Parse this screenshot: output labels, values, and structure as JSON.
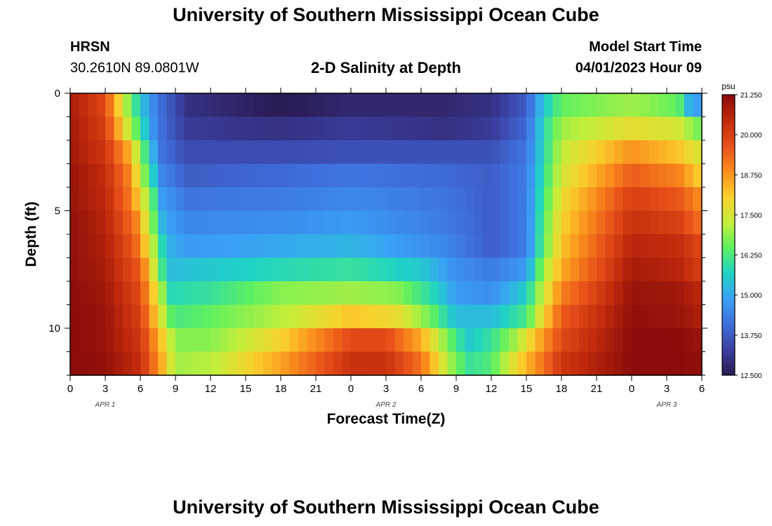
{
  "header": {
    "title": "University of Southern Mississippi Ocean Cube",
    "station": "HRSN",
    "coords": "30.2610N  89.0801W",
    "model_start_label": "Model Start Time",
    "model_start_value": "04/01/2023 Hour 09",
    "footer_title": "University of Southern Mississippi Ocean Cube"
  },
  "colorbar": {
    "unit": "psu",
    "ticks": [
      "21.250",
      "20.000",
      "18.750",
      "17.500",
      "16.250",
      "15.000",
      "13.750",
      "12.500"
    ],
    "stops": [
      "#2b1a52",
      "#3a3fa0",
      "#3f6fdc",
      "#3aa0f5",
      "#1fd4c4",
      "#5ff060",
      "#c2ef3a",
      "#fad02c",
      "#fa8c1c",
      "#e8501a",
      "#c22a0c",
      "#870a0a"
    ]
  },
  "chart_data": {
    "type": "heatmap",
    "title": "2-D Salinity at Depth",
    "xlabel": "Forecast Time(Z)",
    "ylabel": "Depth (ft)",
    "x_tick_labels": [
      "0",
      "3",
      "6",
      "9",
      "12",
      "15",
      "18",
      "21",
      "0",
      "3",
      "6",
      "9",
      "12",
      "15",
      "18",
      "21",
      "0",
      "3",
      "6"
    ],
    "x_day_labels": [
      {
        "hour": 3,
        "label": "APR 1"
      },
      {
        "hour": 27,
        "label": "APR 2"
      },
      {
        "hour": 51,
        "label": "APR 3"
      }
    ],
    "x_range_hours": [
      0,
      54
    ],
    "y_ticks": [
      "0",
      "5",
      "10"
    ],
    "y_range_ft": [
      0,
      12
    ],
    "value_range_psu": [
      12.5,
      21.25
    ],
    "depth_layers_ft": [
      0,
      1,
      2,
      3,
      4,
      5,
      6,
      7,
      8,
      9,
      10,
      11,
      12
    ],
    "layer_profiles": [
      {
        "depth": 0,
        "points": [
          [
            0,
            20.8
          ],
          [
            3,
            19.8
          ],
          [
            4.5,
            17.5
          ],
          [
            6,
            15.5
          ],
          [
            7.5,
            14.2
          ],
          [
            10,
            13.0
          ],
          [
            18,
            12.5
          ],
          [
            24,
            12.8
          ],
          [
            32,
            12.8
          ],
          [
            36,
            13.0
          ],
          [
            39,
            13.8
          ],
          [
            40.5,
            15.5
          ],
          [
            42,
            16.5
          ],
          [
            48,
            17.0
          ],
          [
            52,
            16.5
          ],
          [
            53,
            15.0
          ],
          [
            54,
            14.8
          ]
        ]
      },
      {
        "depth": 1,
        "points": [
          [
            0,
            20.9
          ],
          [
            3,
            20.0
          ],
          [
            4.5,
            18.0
          ],
          [
            6,
            16.0
          ],
          [
            7.5,
            14.2
          ],
          [
            10,
            13.2
          ],
          [
            18,
            13.0
          ],
          [
            24,
            13.2
          ],
          [
            32,
            13.0
          ],
          [
            36,
            13.2
          ],
          [
            39,
            14.0
          ],
          [
            40.5,
            15.8
          ],
          [
            42,
            17.0
          ],
          [
            48,
            17.8
          ],
          [
            52,
            17.5
          ],
          [
            54,
            16.5
          ]
        ]
      },
      {
        "depth": 2,
        "points": [
          [
            0,
            20.9
          ],
          [
            3,
            20.2
          ],
          [
            5,
            18.5
          ],
          [
            6.5,
            16.0
          ],
          [
            7.7,
            14.2
          ],
          [
            10,
            13.5
          ],
          [
            18,
            13.5
          ],
          [
            24,
            13.6
          ],
          [
            32,
            13.6
          ],
          [
            36,
            13.6
          ],
          [
            39,
            14.2
          ],
          [
            40.5,
            15.8
          ],
          [
            42,
            17.3
          ],
          [
            48,
            18.8
          ],
          [
            52,
            18.2
          ],
          [
            54,
            17.5
          ]
        ]
      },
      {
        "depth": 3,
        "points": [
          [
            0,
            21.0
          ],
          [
            3,
            20.4
          ],
          [
            5,
            19.0
          ],
          [
            6.5,
            16.5
          ],
          [
            7.8,
            14.5
          ],
          [
            10,
            13.8
          ],
          [
            18,
            14.0
          ],
          [
            24,
            14.2
          ],
          [
            32,
            14.0
          ],
          [
            36,
            13.8
          ],
          [
            39,
            14.3
          ],
          [
            40.5,
            16.0
          ],
          [
            42,
            17.5
          ],
          [
            48,
            19.5
          ],
          [
            52,
            19.0
          ],
          [
            54,
            18.0
          ]
        ]
      },
      {
        "depth": 4,
        "points": [
          [
            0,
            21.0
          ],
          [
            3,
            20.5
          ],
          [
            5,
            19.2
          ],
          [
            6.8,
            16.8
          ],
          [
            7.9,
            14.8
          ],
          [
            10,
            14.2
          ],
          [
            18,
            14.3
          ],
          [
            24,
            14.5
          ],
          [
            32,
            14.2
          ],
          [
            36,
            13.8
          ],
          [
            39,
            14.3
          ],
          [
            40.5,
            16.2
          ],
          [
            42,
            17.8
          ],
          [
            48,
            20.0
          ],
          [
            52,
            19.6
          ],
          [
            54,
            18.8
          ]
        ]
      },
      {
        "depth": 5,
        "points": [
          [
            0,
            21.1
          ],
          [
            3,
            20.6
          ],
          [
            5.5,
            19.2
          ],
          [
            7,
            16.8
          ],
          [
            8,
            15.0
          ],
          [
            10,
            14.5
          ],
          [
            18,
            14.6
          ],
          [
            24,
            14.8
          ],
          [
            32,
            14.3
          ],
          [
            36,
            13.8
          ],
          [
            39,
            14.3
          ],
          [
            40.5,
            16.4
          ],
          [
            42,
            18.0
          ],
          [
            48,
            20.3
          ],
          [
            52,
            20.0
          ],
          [
            54,
            19.2
          ]
        ]
      },
      {
        "depth": 6,
        "points": [
          [
            0,
            21.1
          ],
          [
            3,
            20.7
          ],
          [
            5.5,
            19.5
          ],
          [
            7.2,
            17.0
          ],
          [
            8.2,
            15.2
          ],
          [
            10,
            14.8
          ],
          [
            18,
            15.0
          ],
          [
            24,
            15.2
          ],
          [
            32,
            14.5
          ],
          [
            36,
            13.8
          ],
          [
            39,
            14.3
          ],
          [
            40.5,
            16.5
          ],
          [
            42,
            18.2
          ],
          [
            48,
            20.6
          ],
          [
            52,
            20.4
          ],
          [
            54,
            19.8
          ]
        ]
      },
      {
        "depth": 7,
        "points": [
          [
            0,
            21.1
          ],
          [
            3,
            20.8
          ],
          [
            6,
            19.5
          ],
          [
            7.3,
            17.2
          ],
          [
            8.3,
            15.3
          ],
          [
            12,
            15.5
          ],
          [
            18,
            15.8
          ],
          [
            24,
            16.0
          ],
          [
            30,
            15.5
          ],
          [
            33,
            14.6
          ],
          [
            36,
            14.3
          ],
          [
            39,
            14.8
          ],
          [
            40.5,
            17.0
          ],
          [
            42,
            18.5
          ],
          [
            48,
            20.8
          ],
          [
            52,
            20.6
          ],
          [
            54,
            20.0
          ]
        ]
      },
      {
        "depth": 8,
        "points": [
          [
            0,
            21.2
          ],
          [
            3,
            20.9
          ],
          [
            6,
            19.8
          ],
          [
            7.5,
            17.5
          ],
          [
            8.6,
            15.8
          ],
          [
            12,
            16.0
          ],
          [
            18,
            16.8
          ],
          [
            24,
            17.0
          ],
          [
            28,
            16.8
          ],
          [
            31,
            15.8
          ],
          [
            33,
            14.8
          ],
          [
            36,
            14.6
          ],
          [
            39,
            15.6
          ],
          [
            40.5,
            17.5
          ],
          [
            42,
            19.0
          ],
          [
            48,
            21.0
          ],
          [
            52,
            20.9
          ],
          [
            54,
            20.5
          ]
        ]
      },
      {
        "depth": 9,
        "points": [
          [
            0,
            21.2
          ],
          [
            3,
            21.0
          ],
          [
            6,
            20.0
          ],
          [
            7.6,
            17.8
          ],
          [
            8.8,
            16.2
          ],
          [
            12,
            16.5
          ],
          [
            18,
            17.2
          ],
          [
            24,
            18.2
          ],
          [
            28,
            17.8
          ],
          [
            31,
            16.5
          ],
          [
            33,
            15.3
          ],
          [
            36,
            15.3
          ],
          [
            39,
            16.2
          ],
          [
            40.5,
            18.0
          ],
          [
            42,
            19.5
          ],
          [
            48,
            21.1
          ],
          [
            52,
            21.0
          ],
          [
            54,
            20.7
          ]
        ]
      },
      {
        "depth": 10,
        "points": [
          [
            0,
            21.2
          ],
          [
            3,
            21.0
          ],
          [
            6,
            20.2
          ],
          [
            7.8,
            18.2
          ],
          [
            9,
            16.8
          ],
          [
            12,
            16.8
          ],
          [
            18,
            18.0
          ],
          [
            24,
            19.8
          ],
          [
            27,
            19.8
          ],
          [
            30,
            18.5
          ],
          [
            32.5,
            16.5
          ],
          [
            34,
            15.5
          ],
          [
            36,
            16.0
          ],
          [
            38,
            17.0
          ],
          [
            40.5,
            18.8
          ],
          [
            42,
            19.8
          ],
          [
            48,
            21.2
          ],
          [
            52,
            21.2
          ],
          [
            54,
            21.0
          ]
        ]
      },
      {
        "depth": 11,
        "points": [
          [
            0,
            21.2
          ],
          [
            3,
            21.1
          ],
          [
            6,
            20.4
          ],
          [
            7.9,
            18.4
          ],
          [
            9,
            17.0
          ],
          [
            12,
            17.2
          ],
          [
            18,
            18.6
          ],
          [
            24,
            20.3
          ],
          [
            27,
            20.3
          ],
          [
            30,
            19.2
          ],
          [
            32.5,
            17.0
          ],
          [
            34,
            16.0
          ],
          [
            36,
            16.3
          ],
          [
            38,
            17.8
          ],
          [
            40.5,
            19.2
          ],
          [
            42,
            20.2
          ],
          [
            48,
            21.2
          ],
          [
            52,
            21.2
          ],
          [
            54,
            21.1
          ]
        ]
      }
    ]
  }
}
